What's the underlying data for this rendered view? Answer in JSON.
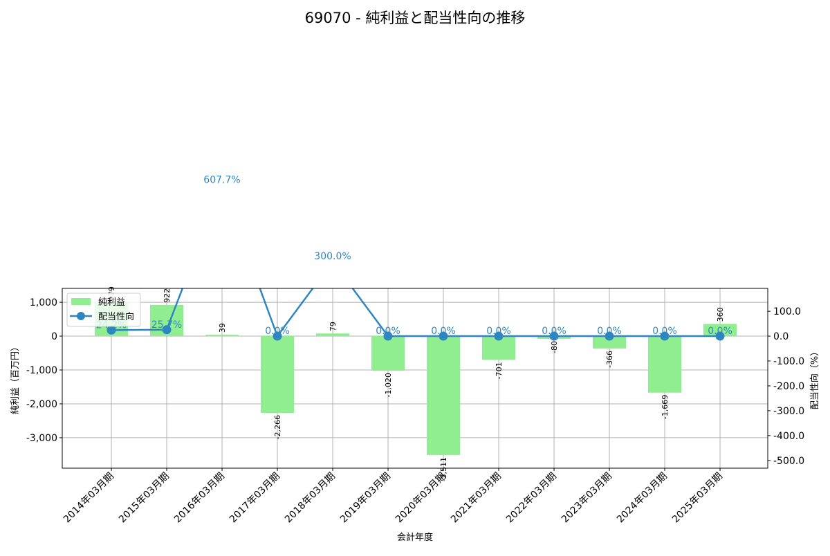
{
  "chart_data": {
    "type": "bar+line",
    "title": "69070 - 純利益と配当性向の推移",
    "xlabel": "会計年度",
    "ylabel_left": "純利益（百万円）",
    "ylabel_right": "配当性向（%）",
    "categories": [
      "2014年03月期",
      "2015年03月期",
      "2016年03月期",
      "2017年03月期",
      "2018年03月期",
      "2019年03月期",
      "2020年03月期",
      "2021年03月期",
      "2022年03月期",
      "2023年03月期",
      "2024年03月期",
      "2025年03月期"
    ],
    "series": [
      {
        "name": "純利益",
        "type": "bar",
        "axis": "left",
        "color": "#90ee90",
        "values": [
          979,
          922,
          39,
          -2266,
          79,
          -1020,
          -3511,
          -701,
          -80,
          -366,
          -1669,
          360
        ],
        "labels": [
          "979",
          "922",
          "39",
          "-2,266",
          "79",
          "-1,020",
          "-3,511",
          "-701",
          "-80",
          "-366",
          "-1,669",
          "360"
        ]
      },
      {
        "name": "配当性向",
        "type": "line",
        "axis": "right",
        "color": "#2e86c1",
        "values": [
          24.2,
          25.7,
          607.7,
          0.0,
          300.0,
          0.0,
          0.0,
          0.0,
          0.0,
          0.0,
          0.0,
          0.0
        ],
        "labels": [
          "24.2%",
          "25.7%",
          "607.7%",
          "0.0%",
          "300.0%",
          "0.0%",
          "0.0%",
          "0.0%",
          "0.0%",
          "0.0%",
          "0.0%",
          "0.0%"
        ]
      }
    ],
    "ylim_left": [
      -3900,
      1410
    ],
    "ylim_right": [
      -531,
      192
    ],
    "yticks_left": [
      {
        "v": 1000,
        "t": "1,000"
      },
      {
        "v": 0,
        "t": "0"
      },
      {
        "v": -1000,
        "t": "-1,000"
      },
      {
        "v": -2000,
        "t": "-2,000"
      },
      {
        "v": -3000,
        "t": "-3,000"
      }
    ],
    "yticks_right": [
      {
        "v": 100,
        "t": "100.0"
      },
      {
        "v": 0,
        "t": "0.0"
      },
      {
        "v": -100,
        "t": "-100.0"
      },
      {
        "v": -200,
        "t": "-200.0"
      },
      {
        "v": -300,
        "t": "-300.0"
      },
      {
        "v": -400,
        "t": "-400.0"
      },
      {
        "v": -500,
        "t": "-500.0"
      }
    ],
    "grid": true,
    "legend": "top-left"
  }
}
